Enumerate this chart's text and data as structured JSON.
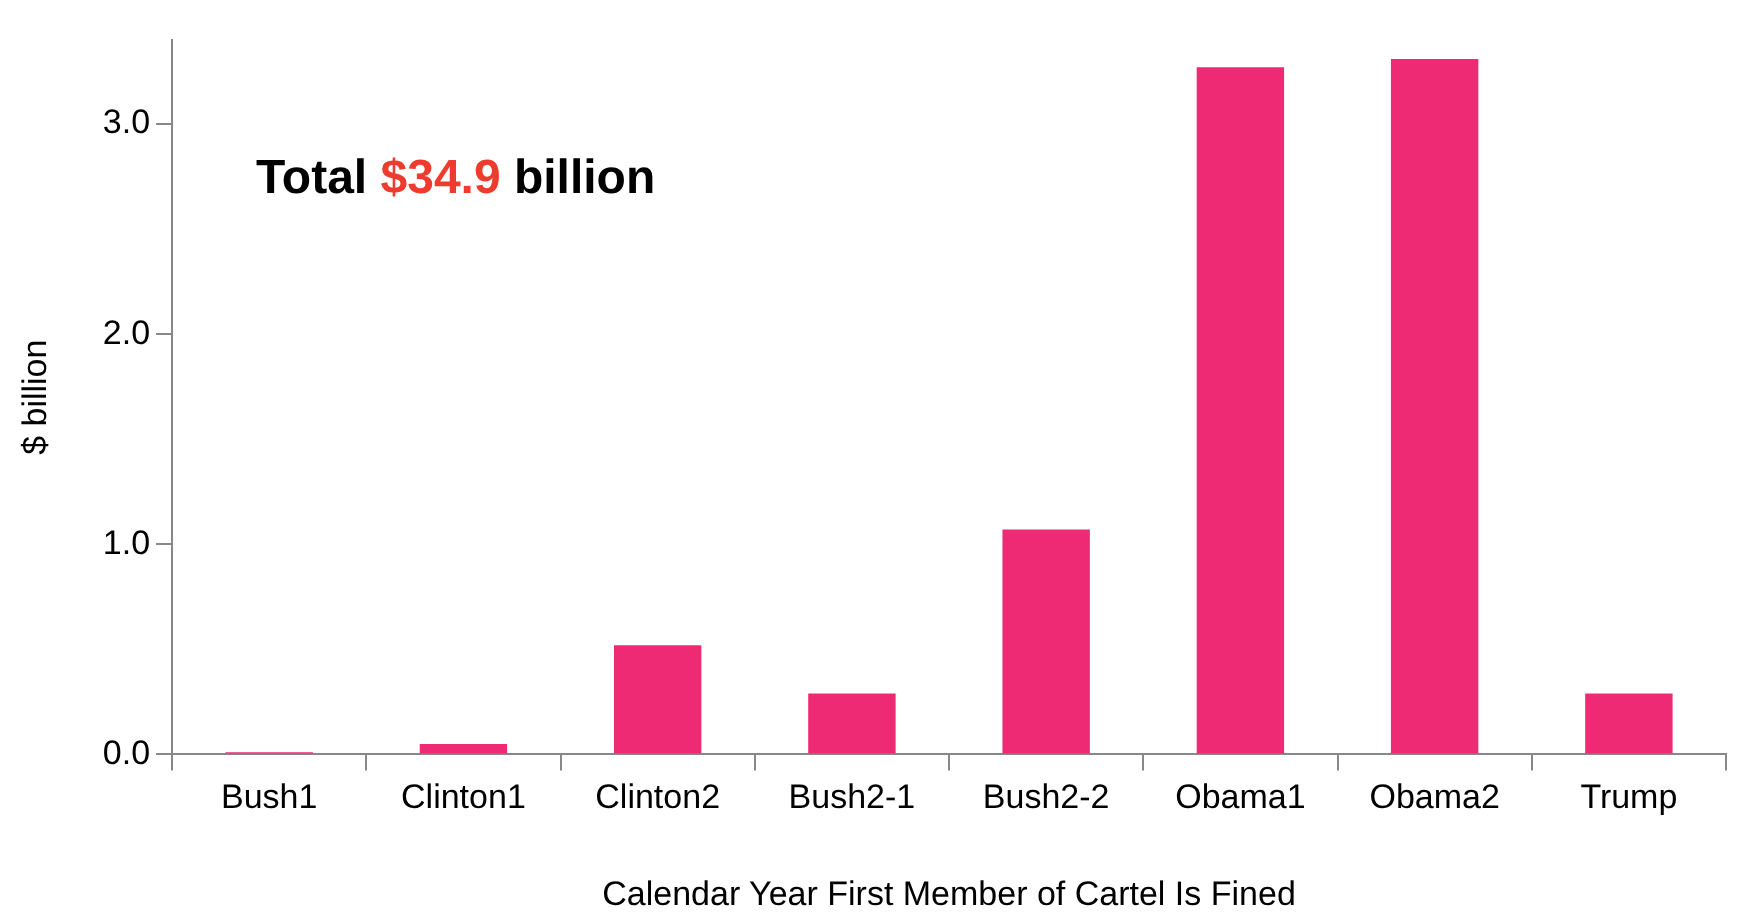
{
  "chart_data": {
    "type": "bar",
    "xlabel": "Calendar Year First Member of Cartel Is Fined",
    "ylabel": "$ billion",
    "categories": [
      "Bush1",
      "Clinton1",
      "Clinton2",
      "Bush2-1",
      "Bush2-2",
      "Obama1",
      "Obama2",
      "Trump"
    ],
    "values": [
      0.01,
      0.05,
      0.52,
      0.29,
      1.07,
      3.27,
      3.31,
      0.29
    ],
    "color": "#ee2a74",
    "ylim": [
      0,
      3.4
    ],
    "yticks": [
      {
        "value": 0,
        "label": "0.0"
      },
      {
        "value": 1,
        "label": "1.0"
      },
      {
        "value": 2,
        "label": "2.0"
      },
      {
        "value": 3,
        "label": "3.0"
      }
    ],
    "grid": false,
    "legend": false,
    "annotations": [
      "Total $34.9 billion"
    ]
  }
}
